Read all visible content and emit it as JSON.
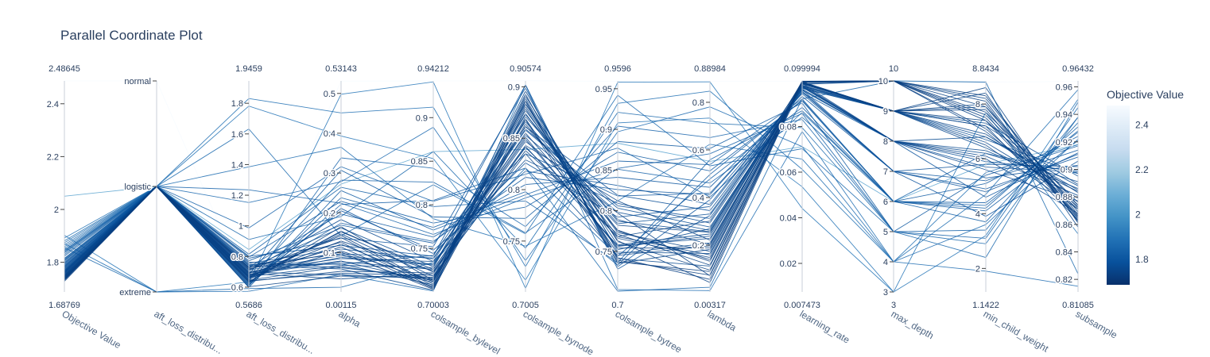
{
  "chart_data": {
    "type": "parallel_coordinates",
    "title": "Parallel Coordinate Plot",
    "colorbar": {
      "title": "Objective Value",
      "range": [
        1.68769,
        2.48645
      ],
      "ticks": [
        "1.8",
        "2",
        "2.2",
        "2.4"
      ],
      "tick_values": [
        1.8,
        2.0,
        2.2,
        2.4
      ],
      "colors": [
        "#08306b",
        "#08519c",
        "#2171b5",
        "#4292c6",
        "#6baed6",
        "#9ecae1",
        "#c6dbef",
        "#deebf7",
        "#f7fbff"
      ]
    },
    "dimensions": [
      {
        "label": "Objective Value",
        "range": [
          1.68769,
          2.48645
        ],
        "min_text": "1.68769",
        "max_text": "2.48645",
        "ticks": [
          {
            "v": 1.8,
            "t": "1.8"
          },
          {
            "v": 2.0,
            "t": "2"
          },
          {
            "v": 2.2,
            "t": "2.2"
          },
          {
            "v": 2.4,
            "t": "2.4"
          }
        ]
      },
      {
        "label": "aft_loss_distribu...",
        "range": [
          0,
          2
        ],
        "min_text": "",
        "max_text": "",
        "ticks": [
          {
            "v": 0,
            "t": "extreme"
          },
          {
            "v": 1,
            "t": "logistic"
          },
          {
            "v": 2,
            "t": "normal"
          }
        ]
      },
      {
        "label": "aft_loss_distribu...",
        "range": [
          0.5686,
          1.9459
        ],
        "min_text": "0.5686",
        "max_text": "1.9459",
        "ticks": [
          {
            "v": 0.6,
            "t": "0.6"
          },
          {
            "v": 0.8,
            "t": "0.8"
          },
          {
            "v": 1.0,
            "t": "1"
          },
          {
            "v": 1.2,
            "t": "1.2"
          },
          {
            "v": 1.4,
            "t": "1.4"
          },
          {
            "v": 1.6,
            "t": "1.6"
          },
          {
            "v": 1.8,
            "t": "1.8"
          }
        ]
      },
      {
        "label": "alpha",
        "range": [
          0.00115,
          0.53143
        ],
        "min_text": "0.00115",
        "max_text": "0.53143",
        "ticks": [
          {
            "v": 0.1,
            "t": "0.1"
          },
          {
            "v": 0.2,
            "t": "0.2"
          },
          {
            "v": 0.3,
            "t": "0.3"
          },
          {
            "v": 0.4,
            "t": "0.4"
          },
          {
            "v": 0.5,
            "t": "0.5"
          }
        ]
      },
      {
        "label": "colsample_bylevel",
        "range": [
          0.70003,
          0.94212
        ],
        "min_text": "0.70003",
        "max_text": "0.94212",
        "ticks": [
          {
            "v": 0.75,
            "t": "0.75"
          },
          {
            "v": 0.8,
            "t": "0.8"
          },
          {
            "v": 0.85,
            "t": "0.85"
          },
          {
            "v": 0.9,
            "t": "0.9"
          }
        ]
      },
      {
        "label": "colsample_bynode",
        "range": [
          0.7005,
          0.90574
        ],
        "min_text": "0.7005",
        "max_text": "0.90574",
        "ticks": [
          {
            "v": 0.75,
            "t": "0.75"
          },
          {
            "v": 0.8,
            "t": "0.8"
          },
          {
            "v": 0.85,
            "t": "0.85"
          },
          {
            "v": 0.9,
            "t": "0.9"
          }
        ]
      },
      {
        "label": "colsample_bytree",
        "range": [
          0.7,
          0.9596
        ],
        "min_text": "0.7",
        "max_text": "0.9596",
        "ticks": [
          {
            "v": 0.75,
            "t": "0.75"
          },
          {
            "v": 0.8,
            "t": "0.8"
          },
          {
            "v": 0.85,
            "t": "0.85"
          },
          {
            "v": 0.9,
            "t": "0.9"
          },
          {
            "v": 0.95,
            "t": "0.95"
          }
        ]
      },
      {
        "label": "lambda",
        "range": [
          0.00317,
          0.88984
        ],
        "min_text": "0.00317",
        "max_text": "0.88984",
        "ticks": [
          {
            "v": 0.2,
            "t": "0.2"
          },
          {
            "v": 0.4,
            "t": "0.4"
          },
          {
            "v": 0.6,
            "t": "0.6"
          },
          {
            "v": 0.8,
            "t": "0.8"
          }
        ]
      },
      {
        "label": "learning_rate",
        "range": [
          0.007473,
          0.099994
        ],
        "min_text": "0.007473",
        "max_text": "0.099994",
        "ticks": [
          {
            "v": 0.02,
            "t": "0.02"
          },
          {
            "v": 0.04,
            "t": "0.04"
          },
          {
            "v": 0.06,
            "t": "0.06"
          },
          {
            "v": 0.08,
            "t": "0.08"
          }
        ]
      },
      {
        "label": "max_depth",
        "range": [
          3,
          10
        ],
        "min_text": "3",
        "max_text": "10",
        "ticks": [
          {
            "v": 3,
            "t": "3"
          },
          {
            "v": 4,
            "t": "4"
          },
          {
            "v": 5,
            "t": "5"
          },
          {
            "v": 6,
            "t": "6"
          },
          {
            "v": 7,
            "t": "7"
          },
          {
            "v": 8,
            "t": "8"
          },
          {
            "v": 9,
            "t": "9"
          },
          {
            "v": 10,
            "t": "10"
          }
        ]
      },
      {
        "label": "min_child_weight",
        "range": [
          1.1422,
          8.8434
        ],
        "min_text": "1.1422",
        "max_text": "8.8434",
        "ticks": [
          {
            "v": 2,
            "t": "2"
          },
          {
            "v": 4,
            "t": "4"
          },
          {
            "v": 6,
            "t": "6"
          },
          {
            "v": 8,
            "t": "8"
          }
        ]
      },
      {
        "label": "subsample",
        "range": [
          0.81085,
          0.96432
        ],
        "min_text": "0.81085",
        "max_text": "0.96432",
        "ticks": [
          {
            "v": 0.82,
            "t": "0.82"
          },
          {
            "v": 0.84,
            "t": "0.84"
          },
          {
            "v": 0.86,
            "t": "0.86"
          },
          {
            "v": 0.88,
            "t": "0.88"
          },
          {
            "v": 0.9,
            "t": "0.9"
          },
          {
            "v": 0.92,
            "t": "0.92"
          },
          {
            "v": 0.94,
            "t": "0.94"
          },
          {
            "v": 0.96,
            "t": "0.96"
          }
        ]
      }
    ],
    "trials": [
      [
        1.741,
        1,
        0.662,
        0.121,
        0.712,
        0.862,
        0.782,
        0.254,
        0.0996,
        9,
        7.9,
        0.874
      ],
      [
        1.752,
        1,
        0.701,
        0.085,
        0.735,
        0.874,
        0.768,
        0.301,
        0.0988,
        9,
        6.9,
        0.883
      ],
      [
        1.735,
        1,
        0.648,
        0.152,
        0.726,
        0.851,
        0.754,
        0.188,
        0.0999,
        10,
        7.5,
        0.866
      ],
      [
        1.766,
        1,
        0.734,
        0.072,
        0.708,
        0.889,
        0.741,
        0.112,
        0.0972,
        8,
        6.2,
        0.891
      ],
      [
        1.782,
        1,
        0.612,
        0.211,
        0.744,
        0.826,
        0.792,
        0.362,
        0.0962,
        7,
        5.8,
        0.902
      ],
      [
        1.745,
        1,
        0.688,
        0.034,
        0.721,
        0.843,
        0.812,
        0.221,
        0.0994,
        9,
        8.4,
        0.858
      ],
      [
        1.728,
        1,
        0.721,
        0.101,
        0.703,
        0.868,
        0.737,
        0.089,
        0.0998,
        10,
        7.1,
        0.871
      ],
      [
        1.797,
        1,
        0.655,
        0.174,
        0.758,
        0.812,
        0.826,
        0.412,
        0.0948,
        8,
        4.6,
        0.912
      ],
      [
        1.759,
        1,
        0.764,
        0.062,
        0.716,
        0.896,
        0.749,
        0.165,
        0.0981,
        9,
        6.6,
        0.879
      ],
      [
        1.812,
        1,
        0.598,
        0.256,
        0.771,
        0.795,
        0.861,
        0.538,
        0.0921,
        6,
        5.1,
        0.924
      ],
      [
        1.738,
        1,
        0.675,
        0.143,
        0.709,
        0.881,
        0.763,
        0.043,
        0.0993,
        10,
        8.1,
        0.862
      ],
      [
        1.771,
        1,
        0.712,
        0.092,
        0.732,
        0.858,
        0.803,
        0.276,
        0.0967,
        9,
        7.3,
        0.895
      ],
      [
        1.749,
        1,
        0.642,
        0.048,
        0.719,
        0.835,
        0.745,
        0.197,
        0.0989,
        8,
        6.0,
        0.868
      ],
      [
        1.787,
        1,
        0.802,
        0.118,
        0.741,
        0.902,
        0.728,
        0.325,
        0.0955,
        7,
        3.9,
        0.906
      ],
      [
        1.732,
        1,
        0.631,
        0.165,
        0.713,
        0.864,
        0.776,
        0.132,
        0.0997,
        10,
        7.7,
        0.876
      ],
      [
        1.805,
        1,
        0.684,
        0.307,
        0.786,
        0.772,
        0.885,
        0.606,
        0.0903,
        5,
        5.4,
        0.917
      ],
      [
        1.762,
        1,
        0.741,
        0.059,
        0.702,
        0.879,
        0.758,
        0.247,
        0.0978,
        9,
        6.4,
        0.884
      ],
      [
        1.744,
        1,
        0.669,
        0.129,
        0.724,
        0.847,
        0.797,
        0.071,
        0.0991,
        9,
        8.6,
        0.861
      ],
      [
        1.823,
        1,
        0.621,
        0.221,
        0.805,
        0.821,
        0.744,
        0.478,
        0.0884,
        6,
        4.2,
        0.931
      ],
      [
        1.756,
        1,
        0.694,
        0.079,
        0.711,
        0.893,
        0.735,
        0.182,
        0.0985,
        10,
        7.0,
        0.873
      ],
      [
        1.776,
        1,
        0.756,
        0.109,
        0.738,
        0.861,
        0.819,
        0.345,
        0.0964,
        8,
        5.9,
        0.899
      ],
      [
        1.739,
        1,
        0.603,
        0.041,
        0.717,
        0.838,
        0.771,
        0.116,
        0.0995,
        9,
        7.4,
        0.865
      ],
      [
        1.768,
        1,
        0.725,
        0.162,
        0.729,
        0.884,
        0.752,
        0.269,
        0.0976,
        8,
        6.8,
        0.888
      ],
      [
        1.835,
        1,
        0.652,
        0.282,
        0.826,
        0.758,
        0.852,
        0.584,
        0.0857,
        5,
        3.4,
        0.938
      ],
      [
        1.751,
        1,
        0.679,
        0.096,
        0.706,
        0.871,
        0.789,
        0.203,
        0.0987,
        10,
        8.2,
        0.869
      ],
      [
        1.791,
        1,
        0.788,
        0.136,
        0.752,
        0.899,
        0.731,
        0.391,
        0.0951,
        7,
        4.9,
        0.909
      ],
      [
        1.743,
        1,
        0.638,
        0.053,
        0.722,
        0.855,
        0.766,
        0.148,
        0.0992,
        9,
        7.8,
        0.863
      ],
      [
        1.764,
        1,
        0.707,
        0.183,
        0.735,
        0.829,
        0.809,
        0.293,
        0.0974,
        8,
        6.3,
        0.886
      ],
      [
        1.815,
        1,
        0.616,
        0.238,
        0.779,
        0.783,
        0.872,
        0.512,
        0.0912,
        6,
        4.4,
        0.927
      ],
      [
        1.736,
        1,
        0.692,
        0.114,
        0.704,
        0.886,
        0.742,
        0.056,
        0.0996,
        10,
        7.6,
        0.872
      ],
      [
        1.774,
        1,
        0.749,
        0.071,
        0.742,
        0.866,
        0.784,
        0.331,
        0.0969,
        9,
        6.7,
        0.897
      ],
      [
        1.758,
        1,
        0.664,
        0.147,
        0.718,
        0.842,
        0.757,
        0.228,
        0.0983,
        8,
        5.6,
        0.877
      ],
      [
        1.801,
        1,
        0.731,
        0.197,
        0.763,
        0.805,
        0.841,
        0.443,
        0.0932,
        7,
        5.2,
        0.914
      ],
      [
        1.747,
        1,
        0.645,
        0.065,
        0.714,
        0.877,
        0.773,
        0.174,
        0.099,
        9,
        8.0,
        0.864
      ],
      [
        1.829,
        1,
        0.815,
        0.264,
        0.798,
        0.789,
        0.736,
        0.559,
        0.0869,
        6,
        3.7,
        0.934
      ],
      [
        1.769,
        1,
        0.673,
        0.088,
        0.731,
        0.853,
        0.798,
        0.262,
        0.0973,
        9,
        7.2,
        0.889
      ],
      [
        1.733,
        1,
        0.715,
        0.138,
        0.707,
        0.891,
        0.762,
        0.095,
        0.0998,
        10,
        8.3,
        0.867
      ],
      [
        1.784,
        1,
        0.627,
        0.205,
        0.748,
        0.818,
        0.831,
        0.371,
        0.0959,
        8,
        5.3,
        0.903
      ],
      [
        1.754,
        1,
        0.698,
        0.044,
        0.715,
        0.869,
        0.747,
        0.209,
        0.0986,
        9,
        6.5,
        0.871
      ],
      [
        1.795,
        1,
        0.772,
        0.169,
        0.756,
        0.835,
        0.818,
        0.418,
        0.0944,
        7,
        4.8,
        0.911
      ],
      [
        1.742,
        1,
        0.659,
        0.104,
        0.712,
        0.883,
        0.775,
        0.139,
        0.0993,
        10,
        7.9,
        0.866
      ],
      [
        1.761,
        1,
        0.684,
        0.077,
        0.726,
        0.849,
        0.756,
        0.238,
        0.0979,
        8,
        6.1,
        0.881
      ],
      [
        1.846,
        1,
        0.605,
        0.338,
        0.842,
        0.764,
        0.904,
        0.652,
        0.0831,
        5,
        3.1,
        0.945
      ],
      [
        1.737,
        1,
        0.728,
        0.126,
        0.705,
        0.887,
        0.739,
        0.074,
        0.0997,
        10,
        7.4,
        0.874
      ],
      [
        1.779,
        1,
        0.743,
        0.097,
        0.739,
        0.859,
        0.806,
        0.312,
        0.0963,
        8,
        5.7,
        0.898
      ],
      [
        1.748,
        1,
        0.636,
        0.154,
        0.723,
        0.841,
        0.768,
        0.159,
        0.099,
        9,
        7.2,
        0.863
      ],
      [
        1.808,
        1,
        0.796,
        0.229,
        0.774,
        0.798,
        0.733,
        0.497,
        0.0916,
        6,
        4.1,
        0.921
      ],
      [
        1.763,
        1,
        0.668,
        0.068,
        0.728,
        0.873,
        0.787,
        0.256,
        0.0977,
        9,
        6.8,
        0.885
      ],
      [
        1.852,
        1,
        0.911,
        0.191,
        0.861,
        0.743,
        0.921,
        0.712,
        0.0795,
        5,
        2.4,
        0.949
      ],
      [
        1.866,
        1,
        1.152,
        0.278,
        0.889,
        0.731,
        0.897,
        0.781,
        0.0712,
        4,
        3.6,
        0.922
      ],
      [
        1.874,
        1,
        1.385,
        0.365,
        0.784,
        0.745,
        0.812,
        0.624,
        0.0657,
        4,
        4.7,
        0.958
      ],
      [
        1.859,
        1,
        1.632,
        0.142,
        0.823,
        0.757,
        0.942,
        0.533,
        0.0703,
        5,
        2.9,
        0.938
      ],
      [
        1.881,
        1,
        1.831,
        0.451,
        0.912,
        0.725,
        0.932,
        0.847,
        0.0612,
        4,
        5.5,
        0.918
      ],
      [
        1.843,
        1,
        1.235,
        0.224,
        0.766,
        0.792,
        0.851,
        0.461,
        0.0841,
        6,
        6.2,
        0.897
      ],
      [
        1.892,
        1,
        1.782,
        0.393,
        0.853,
        0.712,
        0.908,
        0.734,
        0.0536,
        3,
        3.2,
        0.951
      ],
      [
        1.839,
        1,
        0.986,
        0.316,
        0.804,
        0.815,
        0.877,
        0.402,
        0.0862,
        6,
        4.3,
        0.928
      ],
      [
        1.902,
        0,
        0.634,
        0.498,
        0.941,
        0.704,
        0.958,
        0.886,
        0.0441,
        3,
        7.7,
        0.853
      ],
      [
        1.855,
        0,
        0.591,
        0.013,
        0.734,
        0.821,
        0.701,
        0.023,
        0.0921,
        10,
        8.8,
        0.824
      ],
      [
        1.871,
        0,
        0.573,
        0.045,
        0.701,
        0.902,
        0.703,
        0.009,
        0.0778,
        4,
        1.9,
        0.815
      ],
      [
        2.486,
        2,
        0.568,
        0.531,
        0.942,
        0.906,
        0.959,
        0.889,
        0.0999,
        10,
        8.8,
        0.964
      ],
      [
        2.05,
        1,
        0.845,
        0.272,
        0.861,
        0.839,
        0.883,
        0.552,
        0.0712,
        6,
        5.8,
        0.918
      ]
    ]
  }
}
